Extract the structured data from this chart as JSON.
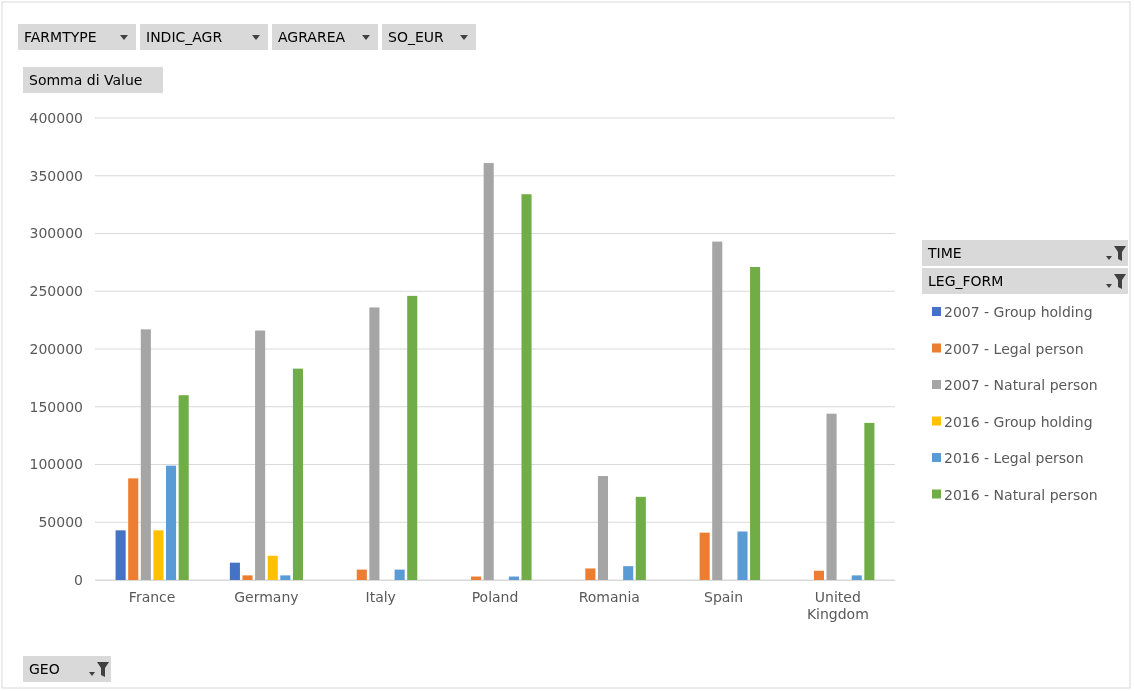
{
  "chart_data": {
    "type": "bar",
    "ylabel": "Somma di Value",
    "xlabel": "GEO",
    "legend_title": "TIME",
    "annotations": [
      "FARMTYPE",
      "INDIC_AGR",
      "AGRAREA",
      "SO_EUR",
      "LEG_FORM"
    ],
    "categories": [
      "France",
      "Germany",
      "Italy",
      "Poland",
      "Romania",
      "Spain",
      "United Kingdom"
    ],
    "series": [
      {
        "name": "2007 - Group holding",
        "color": "#4472c4",
        "values": [
          43000,
          15000,
          null,
          null,
          null,
          null,
          null
        ]
      },
      {
        "name": "2007 - Legal person",
        "color": "#ed7d31",
        "values": [
          88000,
          4000,
          9000,
          3000,
          10000,
          41000,
          8000
        ]
      },
      {
        "name": "2007 - Natural person",
        "color": "#a5a5a5",
        "values": [
          217000,
          216000,
          236000,
          361000,
          90000,
          293000,
          144000
        ]
      },
      {
        "name": "2016 - Group holding",
        "color": "#ffc000",
        "values": [
          43000,
          21000,
          null,
          null,
          null,
          null,
          null
        ]
      },
      {
        "name": "2016 - Legal person",
        "color": "#5b9bd5",
        "values": [
          99000,
          4000,
          9000,
          3000,
          12000,
          42000,
          4000
        ]
      },
      {
        "name": "2016 - Natural person",
        "color": "#70ad47",
        "values": [
          160000,
          183000,
          246000,
          334000,
          72000,
          271000,
          136000
        ]
      }
    ],
    "ylim": [
      0,
      400000
    ],
    "yticks": [
      0,
      50000,
      100000,
      150000,
      200000,
      250000,
      300000,
      350000,
      400000
    ],
    "grid": "y",
    "legend": "right"
  }
}
